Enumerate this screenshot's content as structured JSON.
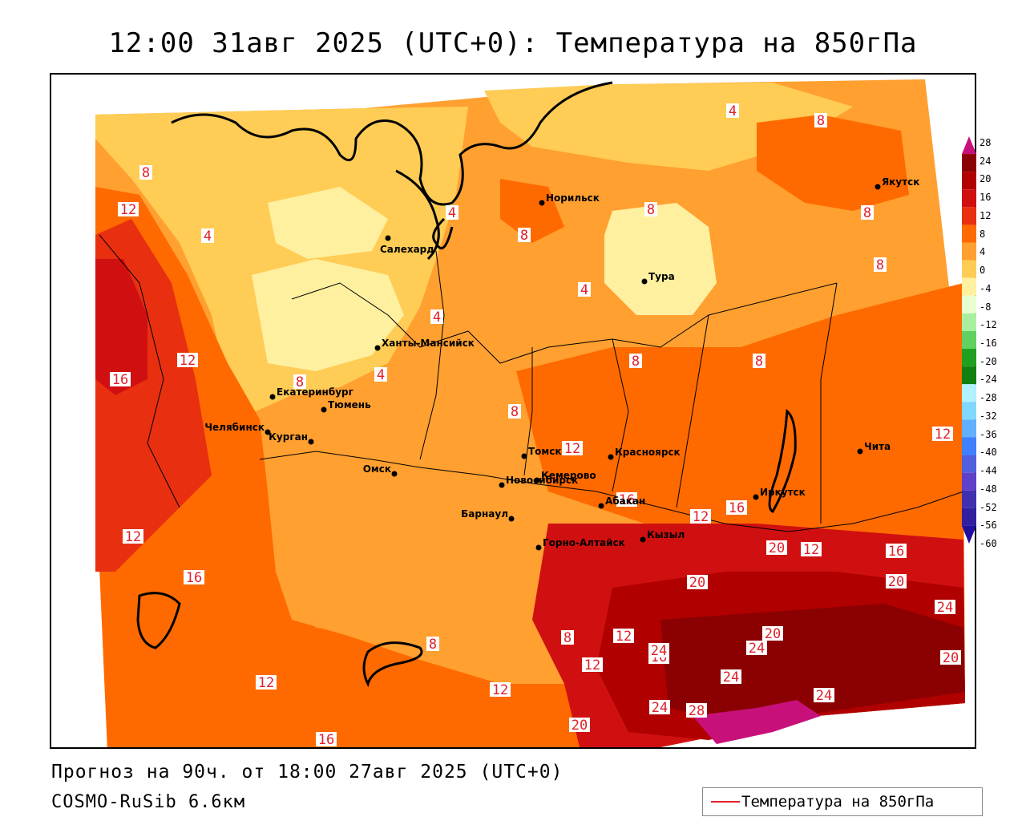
{
  "title": "12:00 31авг 2025 (UTC+0): Температура на 850гПа",
  "footer": {
    "forecast": "Прогноз на 90ч. от 18:00 27авг 2025 (UTC+0)",
    "model": "COSMO-RuSib 6.6км"
  },
  "legend": {
    "label": "Температура на 850гПа",
    "line_color": "#e0202a"
  },
  "colorbar": {
    "ticks": [
      "28",
      "24",
      "20",
      "16",
      "12",
      "8",
      "4",
      "0",
      "-4",
      "-8",
      "-12",
      "-16",
      "-20",
      "-24",
      "-28",
      "-32",
      "-36",
      "-40",
      "-44",
      "-48",
      "-52",
      "-56",
      "-60"
    ],
    "colors": [
      "#c8107a",
      "#8b0000",
      "#b00000",
      "#d01010",
      "#e83010",
      "#ff6a00",
      "#ffa030",
      "#ffcc55",
      "#fff0a0",
      "#e8ffd0",
      "#a8f0a0",
      "#60d060",
      "#20a020",
      "#108010",
      "#b0f0ff",
      "#80d8ff",
      "#60b0ff",
      "#4080ff",
      "#5060e0",
      "#6040c8",
      "#4030b0",
      "#3020a0",
      "#2010a0"
    ]
  },
  "cities": [
    {
      "name": "Норильск"
    },
    {
      "name": "Якутск"
    },
    {
      "name": "Салехард"
    },
    {
      "name": "Тура"
    },
    {
      "name": "Ханты-Мансийск"
    },
    {
      "name": "Екатеринбург"
    },
    {
      "name": "Тюмень"
    },
    {
      "name": "Челябинск"
    },
    {
      "name": "Курган"
    },
    {
      "name": "Омск"
    },
    {
      "name": "Новосибирск"
    },
    {
      "name": "Томск"
    },
    {
      "name": "Кемерово"
    },
    {
      "name": "Красноярск"
    },
    {
      "name": "Абакан"
    },
    {
      "name": "Барнаул"
    },
    {
      "name": "Горно-Алтайск"
    },
    {
      "name": "Кызыл"
    },
    {
      "name": "Иркутск"
    },
    {
      "name": "Чита"
    }
  ],
  "contour_labels": [
    {
      "value": "4"
    },
    {
      "value": "8"
    },
    {
      "value": "8"
    },
    {
      "value": "8"
    },
    {
      "value": "12"
    },
    {
      "value": "8"
    },
    {
      "value": "4"
    },
    {
      "value": "8"
    },
    {
      "value": "8"
    },
    {
      "value": "4"
    },
    {
      "value": "4"
    },
    {
      "value": "4"
    },
    {
      "value": "4"
    },
    {
      "value": "8"
    },
    {
      "value": "8"
    },
    {
      "value": "8"
    },
    {
      "value": "12"
    },
    {
      "value": "16"
    },
    {
      "value": "12"
    },
    {
      "value": "8"
    },
    {
      "value": "12"
    },
    {
      "value": "16"
    },
    {
      "value": "12"
    },
    {
      "value": "16"
    },
    {
      "value": "12"
    },
    {
      "value": "12"
    },
    {
      "value": "16"
    },
    {
      "value": "20"
    },
    {
      "value": "20"
    },
    {
      "value": "24"
    },
    {
      "value": "20"
    },
    {
      "value": "8"
    },
    {
      "value": "12"
    },
    {
      "value": "16"
    },
    {
      "value": "20"
    },
    {
      "value": "24"
    },
    {
      "value": "20"
    },
    {
      "value": "24"
    },
    {
      "value": "24"
    },
    {
      "value": "24"
    },
    {
      "value": "28"
    },
    {
      "value": "24"
    },
    {
      "value": "20"
    },
    {
      "value": "12"
    },
    {
      "value": "12"
    },
    {
      "value": "16"
    },
    {
      "value": "12"
    },
    {
      "value": "8"
    },
    {
      "value": "16"
    }
  ]
}
